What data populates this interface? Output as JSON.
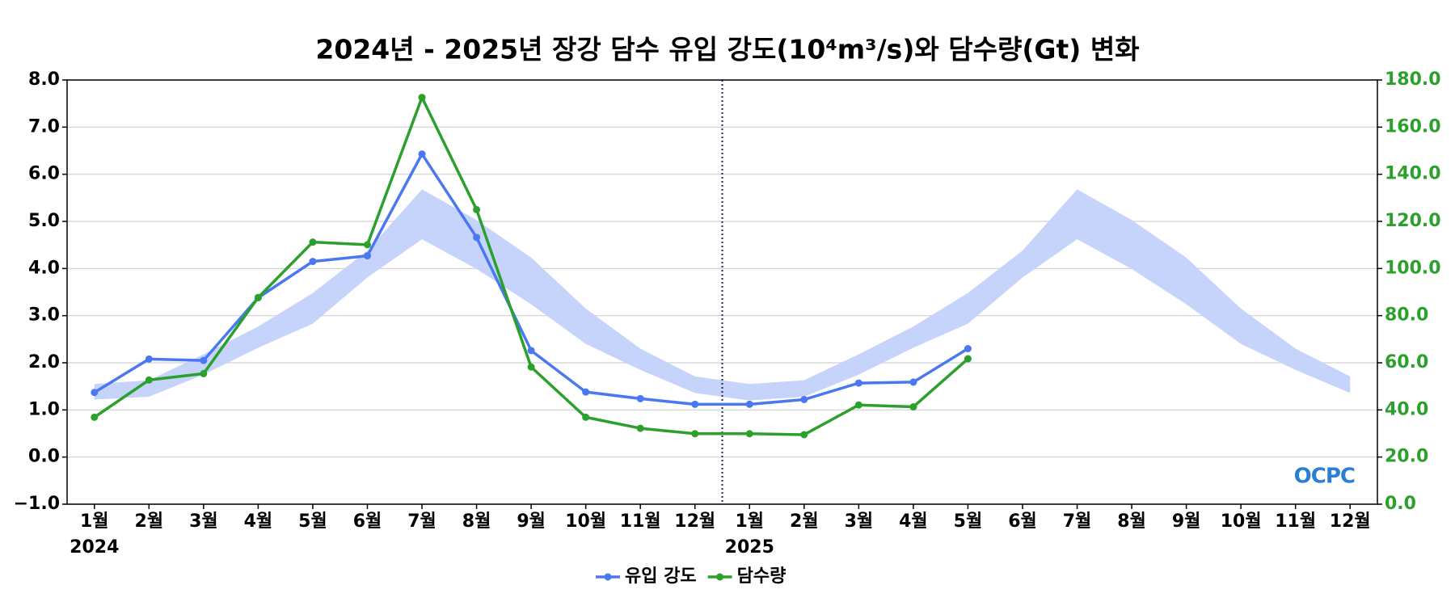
{
  "chart_data": {
    "type": "line",
    "title": "2024년 - 2025년 장강 담수 유입 강도(10⁴m³/s)와 담수량(Gt) 변화",
    "categories": [
      "1월",
      "2월",
      "3월",
      "4월",
      "5월",
      "6월",
      "7월",
      "8월",
      "9월",
      "10월",
      "11월",
      "12월",
      "1월",
      "2월",
      "3월",
      "4월",
      "5월",
      "6월",
      "7월",
      "8월",
      "9월",
      "10월",
      "11월",
      "12월"
    ],
    "years": [
      "2024",
      "2025"
    ],
    "ylim": [
      -1,
      8
    ],
    "yticks": [
      {
        "value": -1,
        "label": "−1.0"
      },
      {
        "value": 0,
        "label": "0.0"
      },
      {
        "value": 1,
        "label": "1.0"
      },
      {
        "value": 2,
        "label": "2.0"
      },
      {
        "value": 3,
        "label": "3.0"
      },
      {
        "value": 4,
        "label": "4.0"
      },
      {
        "value": 5,
        "label": "5.0"
      },
      {
        "value": 6,
        "label": "6.0"
      },
      {
        "value": 7,
        "label": "7.0"
      },
      {
        "value": 8,
        "label": "8.0"
      }
    ],
    "y2lim": [
      0,
      180
    ],
    "y2ticks": [
      {
        "value": 0,
        "label": "0.0"
      },
      {
        "value": 20,
        "label": "20.0"
      },
      {
        "value": 40,
        "label": "40.0"
      },
      {
        "value": 60,
        "label": "60.0"
      },
      {
        "value": 80,
        "label": "80.0"
      },
      {
        "value": 100,
        "label": "100.0"
      },
      {
        "value": 120,
        "label": "120.0"
      },
      {
        "value": 140,
        "label": "140.0"
      },
      {
        "value": 160,
        "label": "160.0"
      },
      {
        "value": 180,
        "label": "180.0"
      }
    ],
    "y2color": "#2ca02c",
    "grid": true,
    "legend": "bottom",
    "band": {
      "color": "#c6d3fb",
      "lower": [
        1.22,
        1.28,
        1.75,
        2.32,
        2.83,
        3.81,
        4.62,
        3.99,
        3.24,
        2.4,
        1.85,
        1.36,
        1.2,
        1.28,
        1.75,
        2.32,
        2.83,
        3.81,
        4.62,
        3.99,
        3.24,
        2.4,
        1.85,
        1.36
      ],
      "upper": [
        1.55,
        1.63,
        2.18,
        2.77,
        3.48,
        4.38,
        5.68,
        5.03,
        4.23,
        3.15,
        2.3,
        1.71,
        1.55,
        1.63,
        2.18,
        2.77,
        3.48,
        4.38,
        5.68,
        5.03,
        4.23,
        3.15,
        2.3,
        1.71
      ]
    },
    "series": [
      {
        "name": "유입 강도",
        "color": "#4a78f0",
        "values": [
          1.37,
          2.08,
          2.05,
          3.38,
          4.15,
          4.27,
          6.43,
          4.66,
          2.26,
          1.38,
          1.24,
          1.12,
          1.12,
          1.22,
          1.57,
          1.59,
          2.3,
          null,
          null,
          null,
          null,
          null,
          null,
          null
        ]
      },
      {
        "name": "담수량",
        "color": "#2ca02c",
        "axis": "y2",
        "values": [
          36.9,
          52.7,
          55.4,
          87.7,
          111.2,
          110.1,
          172.6,
          125.0,
          58.2,
          36.9,
          32.2,
          29.9,
          29.9,
          29.5,
          42.1,
          41.3,
          61.7,
          null,
          null,
          null,
          null,
          null,
          null,
          null
        ]
      }
    ],
    "watermark": "OCPC"
  }
}
